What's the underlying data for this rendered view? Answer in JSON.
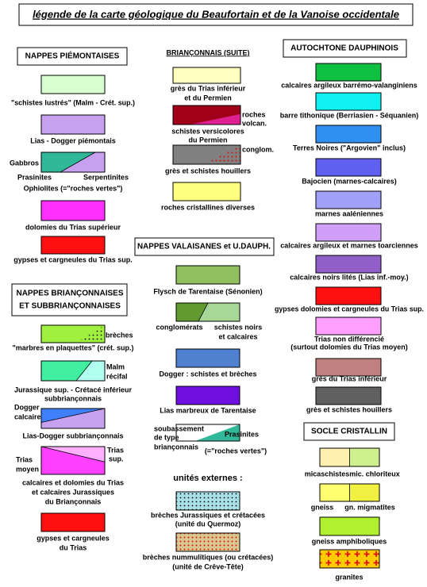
{
  "title": "légende de la carte géologique du Beaufortain et de la Vanoise occidentale",
  "piemontaises": {
    "header": "NAPPES PIÉMONTAISES",
    "items": [
      {
        "colors": [
          "#d8ffd0"
        ],
        "labels": [
          "\"schistes lustrés\" (Malm - Crét. sup.)"
        ]
      },
      {
        "colors": [
          "#c8a0f0"
        ],
        "labels": [
          "Lias - Dogger piémontais"
        ]
      },
      {
        "colors": [
          "#c8a0f0",
          "#30b898"
        ],
        "labels": [
          "Gabbros",
          "Prasinites",
          "Serpentinites",
          "Ophiolites (=\"roches vertes\")"
        ]
      },
      {
        "colors": [
          "#ff30ff"
        ],
        "labels": [
          "dolomies du Trias supérieur"
        ]
      },
      {
        "colors": [
          "#ff1010"
        ],
        "labels": [
          "gypses et cargneules du Trias sup."
        ]
      }
    ]
  },
  "brianconnaises": {
    "header": [
      "NAPPES BRIANÇONNAISES",
      "ET SUBBRIANÇONNAISES"
    ],
    "items": [
      {
        "colors": [
          "#a0f040"
        ],
        "labels": [
          "brèches",
          "\"marbres en plaquettes\" (crét. sup.)"
        ]
      },
      {
        "colors": [
          "#b0fff0",
          "#40f0a0"
        ],
        "labels": [
          "Malm",
          "récifal",
          "Jurassique sup. - Crétacé inférieur",
          "subbriançonnais"
        ]
      },
      {
        "colors": [
          "#c8a0f0",
          "#4080ff"
        ],
        "labels": [
          "Dogger",
          "calcaire",
          "Lias-Dogger subbriançonnais"
        ]
      },
      {
        "colors": [
          "#ffb0ff",
          "#ff40ff"
        ],
        "labels": [
          "Trias",
          "moyen",
          "Trias",
          "sup.",
          "calcaires et dolomies du Trias",
          "et calcaires Jurassiques",
          "du Briançonnais"
        ]
      },
      {
        "colors": [
          "#ff1010"
        ],
        "labels": [
          "gypses et cargneules",
          "du Trias"
        ]
      }
    ]
  },
  "brianconnais_suite": {
    "header": "BRIANÇONNAIS (SUITE)",
    "items": [
      {
        "colors": [
          "#ffffc0"
        ],
        "labels": [
          "grès du Trias inférieur",
          "et du Permien"
        ]
      },
      {
        "colors": [
          "#e02090",
          "#a00018"
        ],
        "labels": [
          "roches",
          "volcan.",
          "schistes versicolores",
          "du Permien"
        ]
      },
      {
        "colors": [
          "#808080"
        ],
        "labels": [
          "conglom.",
          "grès et schistes houillers"
        ]
      },
      {
        "colors": [
          "#ffff80"
        ],
        "labels": [
          "roches cristallines diverses"
        ]
      }
    ]
  },
  "valaisanes": {
    "header": "NAPPES VALAISANES et U.DAUPH.",
    "items": [
      {
        "colors": [
          "#90c060"
        ],
        "labels": [
          "Flysch de Tarentaise (Sénonien)"
        ]
      },
      {
        "colors": [
          "#a8d898",
          "#609a30"
        ],
        "labels": [
          "conglomérats",
          "schistes noirs",
          "et calcaires"
        ]
      },
      {
        "colors": [
          "#5080d0"
        ],
        "labels": [
          "Dogger : schistes et brèches"
        ]
      },
      {
        "colors": [
          "#7010e0"
        ],
        "labels": [
          "Lias marbreux de Tarentaise"
        ]
      },
      {
        "colors": [
          "#ffffff",
          "#30b898"
        ],
        "labels": [
          "soubassement",
          "de type",
          "briançonnais",
          "Prasinites",
          "(=\"roches vertes\")"
        ]
      }
    ]
  },
  "externes": {
    "header": "unités externes :",
    "items": [
      {
        "colors": [
          "#a8e0e8"
        ],
        "labels": [
          "brèches Jurassiques et crétacées",
          "(unité du Quermoz)"
        ]
      },
      {
        "colors": [
          "#d8c890"
        ],
        "labels": [
          "brèches nummulitiques (ou crétacées)",
          "(unité de Crêve-Tête)"
        ]
      }
    ]
  },
  "dauphinois": {
    "header": "AUTOCHTONE DAUPHINOIS",
    "items": [
      {
        "colors": [
          "#10c040"
        ],
        "labels": [
          "calcaires argileux barrémo-valanginiens"
        ]
      },
      {
        "colors": [
          "#10f0f0"
        ],
        "labels": [
          "barre tithonique (Berriasien - Séquanien)"
        ]
      },
      {
        "colors": [
          "#3090f0"
        ],
        "labels": [
          "Terres Noires (\"Argovien\" inclus)"
        ]
      },
      {
        "colors": [
          "#6060f0"
        ],
        "labels": [
          "Bajocien (marnes-calcaires)"
        ]
      },
      {
        "colors": [
          "#a0a0f8"
        ],
        "labels": [
          "marnes aaléniennes"
        ]
      },
      {
        "colors": [
          "#d0a0f8"
        ],
        "labels": [
          "calcaires argileux et marnes toarciennes"
        ]
      },
      {
        "colors": [
          "#9060c8"
        ],
        "labels": [
          "calcaires noirs lités (Lias inf.-moy.)"
        ]
      },
      {
        "colors": [
          "#ff1010"
        ],
        "labels": [
          "gypses dolomies et cargneules du Trias sup."
        ]
      },
      {
        "colors": [
          "#ffa0ff"
        ],
        "labels": [
          "Trias non différencié",
          "(surtout dolomies du Trias moyen)"
        ]
      },
      {
        "colors": [
          "#c08080"
        ],
        "labels": [
          "grès du Trias inférieur"
        ]
      },
      {
        "colors": [
          "#606060"
        ],
        "labels": [
          "grès et schistes houillers"
        ]
      }
    ]
  },
  "socle": {
    "header": "SOCLE CRISTALLIN",
    "items": [
      {
        "colors": [
          "#d0f090",
          "#fff0b0"
        ],
        "labels": [
          "micaschistes",
          "mic. chloriteux"
        ]
      },
      {
        "colors": [
          "#f0f040",
          "#ffff70"
        ],
        "labels": [
          "gneiss",
          "gn. migmatites"
        ]
      },
      {
        "colors": [
          "#b0f030"
        ],
        "labels": [
          "gneiss amphiboliques"
        ]
      },
      {
        "colors": [
          "#ffcc00"
        ],
        "labels": [
          "granites"
        ]
      }
    ]
  }
}
